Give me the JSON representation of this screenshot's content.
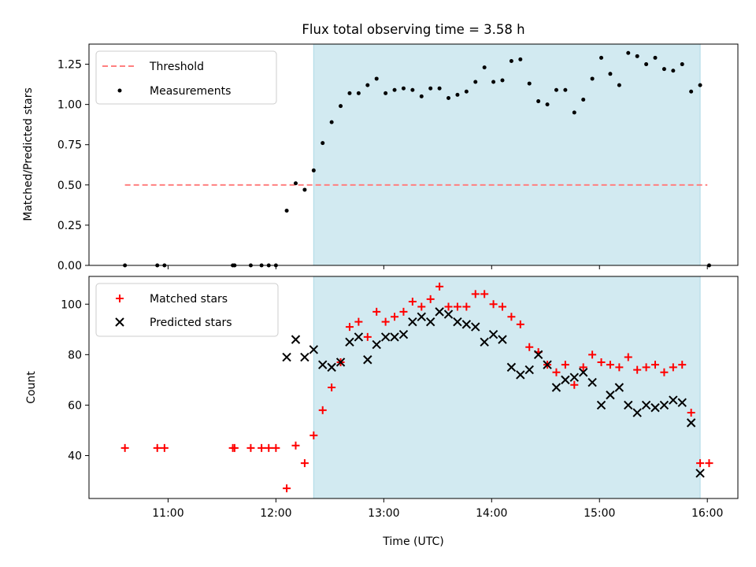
{
  "chart_data": [
    {
      "type": "scatter",
      "title": "Flux total observing time = 3.58 h",
      "xlabel": "",
      "ylabel": "Matched/Predicted stars",
      "xlim": [
        "10:16",
        "16:17"
      ],
      "ylim": [
        0.0,
        1.375
      ],
      "yticks": [
        0.0,
        0.25,
        0.5,
        0.75,
        1.0,
        1.25
      ],
      "ytick_labels": [
        "0.00",
        "0.25",
        "0.50",
        "0.75",
        "1.00",
        "1.25"
      ],
      "grid": false,
      "legend": "top-left",
      "shaded_region": {
        "x": [
          "12:21",
          "15:56"
        ],
        "color": "#add8e6"
      },
      "threshold": {
        "name": "Threshold",
        "value": 0.5,
        "x": [
          "10:36",
          "16:00"
        ],
        "color": "#ff8080"
      },
      "series": [
        {
          "name": "Measurements",
          "color": "#000000",
          "points": [
            {
              "x": "10:36",
              "y": 0.0
            },
            {
              "x": "10:54",
              "y": 0.0
            },
            {
              "x": "10:58",
              "y": 0.0
            },
            {
              "x": "11:36",
              "y": 0.0
            },
            {
              "x": "11:37",
              "y": 0.0
            },
            {
              "x": "11:46",
              "y": 0.0
            },
            {
              "x": "11:52",
              "y": 0.0
            },
            {
              "x": "11:56",
              "y": 0.0
            },
            {
              "x": "12:00",
              "y": 0.0
            },
            {
              "x": "12:06",
              "y": 0.34
            },
            {
              "x": "12:11",
              "y": 0.51
            },
            {
              "x": "12:16",
              "y": 0.47
            },
            {
              "x": "12:21",
              "y": 0.59
            },
            {
              "x": "12:26",
              "y": 0.76
            },
            {
              "x": "12:31",
              "y": 0.89
            },
            {
              "x": "12:36",
              "y": 0.99
            },
            {
              "x": "12:41",
              "y": 1.07
            },
            {
              "x": "12:46",
              "y": 1.07
            },
            {
              "x": "12:51",
              "y": 1.12
            },
            {
              "x": "12:56",
              "y": 1.16
            },
            {
              "x": "13:01",
              "y": 1.07
            },
            {
              "x": "13:06",
              "y": 1.09
            },
            {
              "x": "13:11",
              "y": 1.1
            },
            {
              "x": "13:16",
              "y": 1.09
            },
            {
              "x": "13:21",
              "y": 1.05
            },
            {
              "x": "13:26",
              "y": 1.1
            },
            {
              "x": "13:31",
              "y": 1.1
            },
            {
              "x": "13:36",
              "y": 1.04
            },
            {
              "x": "13:41",
              "y": 1.06
            },
            {
              "x": "13:46",
              "y": 1.08
            },
            {
              "x": "13:51",
              "y": 1.14
            },
            {
              "x": "13:56",
              "y": 1.23
            },
            {
              "x": "14:01",
              "y": 1.14
            },
            {
              "x": "14:06",
              "y": 1.15
            },
            {
              "x": "14:11",
              "y": 1.27
            },
            {
              "x": "14:16",
              "y": 1.28
            },
            {
              "x": "14:21",
              "y": 1.13
            },
            {
              "x": "14:26",
              "y": 1.02
            },
            {
              "x": "14:31",
              "y": 1.0
            },
            {
              "x": "14:36",
              "y": 1.09
            },
            {
              "x": "14:41",
              "y": 1.09
            },
            {
              "x": "14:46",
              "y": 0.95
            },
            {
              "x": "14:51",
              "y": 1.03
            },
            {
              "x": "14:56",
              "y": 1.16
            },
            {
              "x": "15:01",
              "y": 1.29
            },
            {
              "x": "15:06",
              "y": 1.19
            },
            {
              "x": "15:11",
              "y": 1.12
            },
            {
              "x": "15:16",
              "y": 1.32
            },
            {
              "x": "15:21",
              "y": 1.3
            },
            {
              "x": "15:26",
              "y": 1.25
            },
            {
              "x": "15:31",
              "y": 1.29
            },
            {
              "x": "15:36",
              "y": 1.22
            },
            {
              "x": "15:41",
              "y": 1.21
            },
            {
              "x": "15:46",
              "y": 1.25
            },
            {
              "x": "15:51",
              "y": 1.08
            },
            {
              "x": "15:56",
              "y": 1.12
            },
            {
              "x": "16:01",
              "y": 0.0
            }
          ]
        }
      ]
    },
    {
      "type": "scatter",
      "title": "",
      "xlabel": "Time (UTC)",
      "ylabel": "Count",
      "xlim": [
        "10:16",
        "16:17"
      ],
      "ylim": [
        23,
        111
      ],
      "yticks": [
        40,
        60,
        80,
        100
      ],
      "xticks": [
        "11:00",
        "12:00",
        "13:00",
        "14:00",
        "15:00",
        "16:00"
      ],
      "grid": false,
      "legend": "top-left",
      "shaded_region": {
        "x": [
          "12:21",
          "15:56"
        ],
        "color": "#add8e6"
      },
      "series": [
        {
          "name": "Matched stars",
          "color": "#ff0000",
          "marker": "plus",
          "points": [
            {
              "x": "10:36",
              "y": 43
            },
            {
              "x": "10:54",
              "y": 43
            },
            {
              "x": "10:58",
              "y": 43
            },
            {
              "x": "11:36",
              "y": 43
            },
            {
              "x": "11:37",
              "y": 43
            },
            {
              "x": "11:46",
              "y": 43
            },
            {
              "x": "11:52",
              "y": 43
            },
            {
              "x": "11:56",
              "y": 43
            },
            {
              "x": "12:00",
              "y": 43
            },
            {
              "x": "12:06",
              "y": 27
            },
            {
              "x": "12:11",
              "y": 44
            },
            {
              "x": "12:16",
              "y": 37
            },
            {
              "x": "12:21",
              "y": 48
            },
            {
              "x": "12:26",
              "y": 58
            },
            {
              "x": "12:31",
              "y": 67
            },
            {
              "x": "12:36",
              "y": 77
            },
            {
              "x": "12:41",
              "y": 91
            },
            {
              "x": "12:46",
              "y": 93
            },
            {
              "x": "12:51",
              "y": 87
            },
            {
              "x": "12:56",
              "y": 97
            },
            {
              "x": "13:01",
              "y": 93
            },
            {
              "x": "13:06",
              "y": 95
            },
            {
              "x": "13:11",
              "y": 97
            },
            {
              "x": "13:16",
              "y": 101
            },
            {
              "x": "13:21",
              "y": 99
            },
            {
              "x": "13:26",
              "y": 102
            },
            {
              "x": "13:31",
              "y": 107
            },
            {
              "x": "13:36",
              "y": 99
            },
            {
              "x": "13:41",
              "y": 99
            },
            {
              "x": "13:46",
              "y": 99
            },
            {
              "x": "13:51",
              "y": 104
            },
            {
              "x": "13:56",
              "y": 104
            },
            {
              "x": "14:01",
              "y": 100
            },
            {
              "x": "14:06",
              "y": 99
            },
            {
              "x": "14:11",
              "y": 95
            },
            {
              "x": "14:16",
              "y": 92
            },
            {
              "x": "14:21",
              "y": 83
            },
            {
              "x": "14:26",
              "y": 81
            },
            {
              "x": "14:31",
              "y": 76
            },
            {
              "x": "14:36",
              "y": 73
            },
            {
              "x": "14:41",
              "y": 76
            },
            {
              "x": "14:46",
              "y": 68
            },
            {
              "x": "14:51",
              "y": 75
            },
            {
              "x": "14:56",
              "y": 80
            },
            {
              "x": "15:01",
              "y": 77
            },
            {
              "x": "15:06",
              "y": 76
            },
            {
              "x": "15:11",
              "y": 75
            },
            {
              "x": "15:16",
              "y": 79
            },
            {
              "x": "15:21",
              "y": 74
            },
            {
              "x": "15:26",
              "y": 75
            },
            {
              "x": "15:31",
              "y": 76
            },
            {
              "x": "15:36",
              "y": 73
            },
            {
              "x": "15:41",
              "y": 75
            },
            {
              "x": "15:46",
              "y": 76
            },
            {
              "x": "15:51",
              "y": 57
            },
            {
              "x": "15:56",
              "y": 37
            },
            {
              "x": "16:01",
              "y": 37
            }
          ]
        },
        {
          "name": "Predicted stars",
          "color": "#000000",
          "marker": "cross",
          "points": [
            {
              "x": "12:06",
              "y": 79
            },
            {
              "x": "12:11",
              "y": 86
            },
            {
              "x": "12:16",
              "y": 79
            },
            {
              "x": "12:21",
              "y": 82
            },
            {
              "x": "12:26",
              "y": 76
            },
            {
              "x": "12:31",
              "y": 75
            },
            {
              "x": "12:36",
              "y": 77
            },
            {
              "x": "12:41",
              "y": 85
            },
            {
              "x": "12:46",
              "y": 87
            },
            {
              "x": "12:51",
              "y": 78
            },
            {
              "x": "12:56",
              "y": 84
            },
            {
              "x": "13:01",
              "y": 87
            },
            {
              "x": "13:06",
              "y": 87
            },
            {
              "x": "13:11",
              "y": 88
            },
            {
              "x": "13:16",
              "y": 93
            },
            {
              "x": "13:21",
              "y": 95
            },
            {
              "x": "13:26",
              "y": 93
            },
            {
              "x": "13:31",
              "y": 97
            },
            {
              "x": "13:36",
              "y": 96
            },
            {
              "x": "13:41",
              "y": 93
            },
            {
              "x": "13:46",
              "y": 92
            },
            {
              "x": "13:51",
              "y": 91
            },
            {
              "x": "13:56",
              "y": 85
            },
            {
              "x": "14:01",
              "y": 88
            },
            {
              "x": "14:06",
              "y": 86
            },
            {
              "x": "14:11",
              "y": 75
            },
            {
              "x": "14:16",
              "y": 72
            },
            {
              "x": "14:21",
              "y": 74
            },
            {
              "x": "14:26",
              "y": 80
            },
            {
              "x": "14:31",
              "y": 76
            },
            {
              "x": "14:36",
              "y": 67
            },
            {
              "x": "14:41",
              "y": 70
            },
            {
              "x": "14:46",
              "y": 71
            },
            {
              "x": "14:51",
              "y": 73
            },
            {
              "x": "14:56",
              "y": 69
            },
            {
              "x": "15:01",
              "y": 60
            },
            {
              "x": "15:06",
              "y": 64
            },
            {
              "x": "15:11",
              "y": 67
            },
            {
              "x": "15:16",
              "y": 60
            },
            {
              "x": "15:21",
              "y": 57
            },
            {
              "x": "15:26",
              "y": 60
            },
            {
              "x": "15:31",
              "y": 59
            },
            {
              "x": "15:36",
              "y": 60
            },
            {
              "x": "15:41",
              "y": 62
            },
            {
              "x": "15:46",
              "y": 61
            },
            {
              "x": "15:51",
              "y": 53
            },
            {
              "x": "15:56",
              "y": 33
            }
          ]
        }
      ]
    }
  ]
}
